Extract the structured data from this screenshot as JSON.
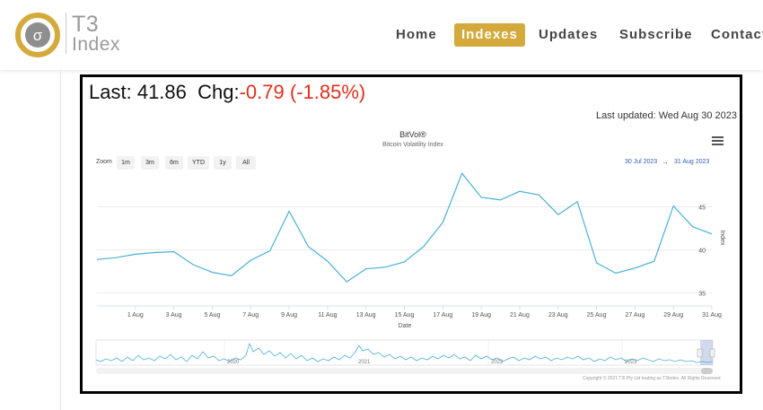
{
  "brand": {
    "name_line1": "T3",
    "name_line2": "Index",
    "logo_symbol": "σ",
    "accent_color": "#d4aa3c"
  },
  "nav": {
    "items": [
      {
        "label": "Home"
      },
      {
        "label": "Indexes"
      },
      {
        "label": "Updates"
      },
      {
        "label": "Subscribe"
      },
      {
        "label": "Contact"
      }
    ],
    "active": "Indexes"
  },
  "quote": {
    "last_label": "Last:",
    "last_value": "41.86",
    "chg_label": "Chg:",
    "chg_value": "-0.79",
    "chg_pct": "(-1.85%)",
    "negative_color": "#e0301e"
  },
  "updated": "Last updated: Wed Aug 30 2023",
  "chart": {
    "title": "BitVol®",
    "subtitle": "Bitcoin Volatility Index",
    "menu_icon": "hamburger-menu-icon",
    "zoom_label": "Zoom",
    "zoom_buttons": [
      "1m",
      "3m",
      "6m",
      "YTD",
      "1y",
      "All"
    ],
    "range_from": "30 Jul 2023",
    "range_arrow": "→",
    "range_to": "31 Aug 2023",
    "copyright": "Copyright © 2021 T3I Pty Ltd trading as T3Index. All Rights Reserved",
    "line_color": "#4ab0d6"
  },
  "chart_data": {
    "type": "line",
    "title": "BitVol®",
    "subtitle": "Bitcoin Volatility Index",
    "xlabel": "Date",
    "ylabel": "Index",
    "y_axis_side": "right",
    "ylim": [
      33.5,
      48.5
    ],
    "yticks": [
      35,
      40,
      45
    ],
    "xtick_labels": [
      "1 Aug",
      "3 Aug",
      "5 Aug",
      "7 Aug",
      "9 Aug",
      "11 Aug",
      "13 Aug",
      "15 Aug",
      "17 Aug",
      "19 Aug",
      "21 Aug",
      "23 Aug",
      "25 Aug",
      "27 Aug",
      "29 Aug",
      "31 Aug"
    ],
    "x": [
      "30 Jul",
      "31 Jul",
      "1 Aug",
      "2 Aug",
      "3 Aug",
      "4 Aug",
      "5 Aug",
      "6 Aug",
      "7 Aug",
      "8 Aug",
      "9 Aug",
      "10 Aug",
      "11 Aug",
      "12 Aug",
      "13 Aug",
      "14 Aug",
      "15 Aug",
      "16 Aug",
      "17 Aug",
      "18 Aug",
      "19 Aug",
      "20 Aug",
      "21 Aug",
      "22 Aug",
      "23 Aug",
      "24 Aug",
      "25 Aug",
      "26 Aug",
      "27 Aug",
      "28 Aug",
      "29 Aug",
      "30 Aug",
      "31 Aug"
    ],
    "series": [
      {
        "values": [
          38.9,
          39.1,
          39.5,
          39.7,
          39.8,
          38.3,
          37.4,
          37.0,
          38.8,
          39.9,
          44.5,
          40.4,
          38.7,
          36.3,
          37.8,
          38.0,
          38.6,
          40.4,
          43.2,
          48.9,
          46.1,
          45.8,
          46.8,
          46.4,
          44.1,
          45.6,
          38.5,
          37.3,
          37.9,
          38.7,
          45.1,
          42.7,
          41.86
        ]
      }
    ],
    "grid": true,
    "legend": "none",
    "navigator": {
      "year_labels": [
        "2020",
        "2021",
        "2022",
        "2023"
      ]
    }
  }
}
